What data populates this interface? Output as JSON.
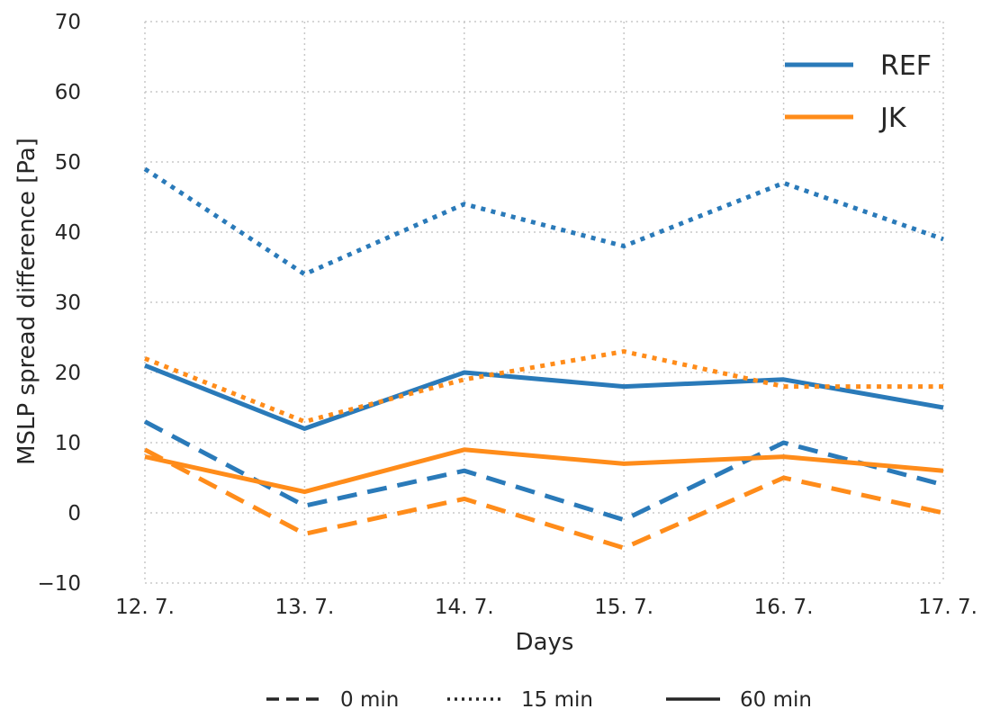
{
  "chart_data": {
    "type": "line",
    "xlabel": "Days",
    "ylabel": "MSLP spread difference [Pa]",
    "categories": [
      "12. 7.",
      "13. 7.",
      "14. 7.",
      "15. 7.",
      "16. 7.",
      "17. 7."
    ],
    "ylim": [
      -10,
      70
    ],
    "yticks": [
      -10,
      0,
      10,
      20,
      30,
      40,
      50,
      60,
      70
    ],
    "grid": true,
    "models": [
      {
        "name": "REF",
        "color": "#2a7ab9"
      },
      {
        "name": "JK",
        "color": "#ff8c1a"
      }
    ],
    "styles": [
      {
        "name": "0 min",
        "dash": "dashed"
      },
      {
        "name": "15 min",
        "dash": "dotted"
      },
      {
        "name": "60 min",
        "dash": "solid"
      }
    ],
    "series": [
      {
        "model": "REF",
        "style": "0 min",
        "values": [
          13,
          1,
          6,
          -1,
          10,
          4
        ]
      },
      {
        "model": "REF",
        "style": "15 min",
        "values": [
          49,
          34,
          44,
          38,
          47,
          39
        ]
      },
      {
        "model": "REF",
        "style": "60 min",
        "values": [
          21,
          12,
          20,
          18,
          19,
          15
        ]
      },
      {
        "model": "JK",
        "style": "0 min",
        "values": [
          9,
          -3,
          2,
          -5,
          5,
          0
        ]
      },
      {
        "model": "JK",
        "style": "15 min",
        "values": [
          22,
          13,
          19,
          23,
          18,
          18
        ]
      },
      {
        "model": "JK",
        "style": "60 min",
        "values": [
          8,
          3,
          9,
          7,
          8,
          6
        ]
      }
    ],
    "legend_position": "top-right",
    "style_legend_position": "bottom-center"
  }
}
